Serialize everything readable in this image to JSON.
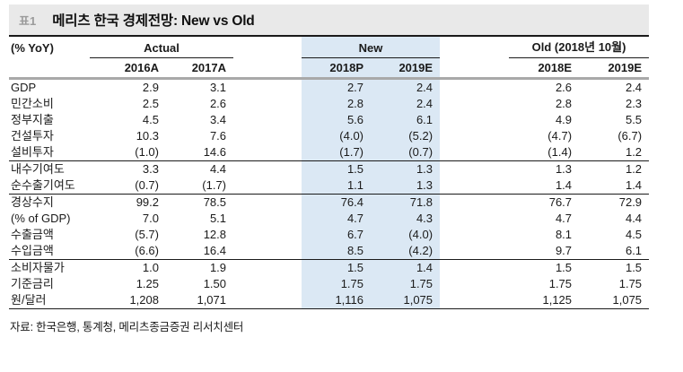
{
  "page": {
    "table_tag": "표1",
    "title": "메리츠 한국 경제전망: New vs Old",
    "source": "자료: 한국은행, 통계청, 메리츠종금증권 리서치센터"
  },
  "table": {
    "unit_label": "(% YoY)",
    "groups": [
      {
        "label": "Actual",
        "columns": [
          "2016A",
          "2017A"
        ],
        "highlighted": false
      },
      {
        "label": "New",
        "columns": [
          "2018P",
          "2019E"
        ],
        "highlighted": true
      },
      {
        "label": "Old (2018년 10월)",
        "columns": [
          "2018E",
          "2019E"
        ],
        "highlighted": false
      }
    ],
    "rows": [
      {
        "label": "GDP",
        "values": [
          "2.9",
          "3.1",
          "2.7",
          "2.4",
          "2.6",
          "2.4"
        ],
        "section_end": false
      },
      {
        "label": "민간소비",
        "values": [
          "2.5",
          "2.6",
          "2.8",
          "2.4",
          "2.8",
          "2.3"
        ],
        "section_end": false
      },
      {
        "label": "정부지출",
        "values": [
          "4.5",
          "3.4",
          "5.6",
          "6.1",
          "4.9",
          "5.5"
        ],
        "section_end": false
      },
      {
        "label": "건설투자",
        "values": [
          "10.3",
          "7.6",
          "(4.0)",
          "(5.2)",
          "(4.7)",
          "(6.7)"
        ],
        "section_end": false
      },
      {
        "label": "설비투자",
        "values": [
          "(1.0)",
          "14.6",
          "(1.7)",
          "(0.7)",
          "(1.4)",
          "1.2"
        ],
        "section_end": true
      },
      {
        "label": "내수기여도",
        "values": [
          "3.3",
          "4.4",
          "1.5",
          "1.3",
          "1.3",
          "1.2"
        ],
        "section_end": false
      },
      {
        "label": "순수출기여도",
        "values": [
          "(0.7)",
          "(1.7)",
          "1.1",
          "1.3",
          "1.4",
          "1.4"
        ],
        "section_end": true
      },
      {
        "label": "경상수지",
        "values": [
          "99.2",
          "78.5",
          "76.4",
          "71.8",
          "76.7",
          "72.9"
        ],
        "section_end": false
      },
      {
        "label": "(% of GDP)",
        "values": [
          "7.0",
          "5.1",
          "4.7",
          "4.3",
          "4.7",
          "4.4"
        ],
        "section_end": false
      },
      {
        "label": "수출금액",
        "values": [
          "(5.7)",
          "12.8",
          "6.7",
          "(4.0)",
          "8.1",
          "4.5"
        ],
        "section_end": false
      },
      {
        "label": "수입금액",
        "values": [
          "(6.6)",
          "16.4",
          "8.5",
          "(4.2)",
          "9.7",
          "6.1"
        ],
        "section_end": true
      },
      {
        "label": "소비자물가",
        "values": [
          "1.0",
          "1.9",
          "1.5",
          "1.4",
          "1.5",
          "1.5"
        ],
        "section_end": false
      },
      {
        "label": "기준금리",
        "values": [
          "1.25",
          "1.50",
          "1.75",
          "1.75",
          "1.75",
          "1.75"
        ],
        "section_end": false
      },
      {
        "label": "원/달러",
        "values": [
          "1,208",
          "1,071",
          "1,116",
          "1,075",
          "1,125",
          "1,075"
        ],
        "section_end": false
      }
    ]
  },
  "colors": {
    "highlight_column": "#dbe8f4",
    "title_bar_bg": "#e9e9e9",
    "thick_rule": "#a9a9a9",
    "rule": "#1a1a1a",
    "tag_text": "#9b9b9b"
  }
}
